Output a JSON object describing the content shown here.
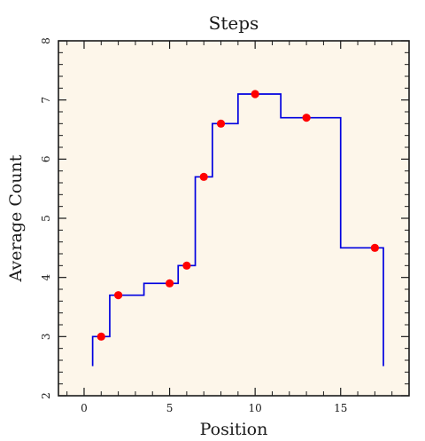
{
  "chart_data": {
    "type": "line",
    "style": "step",
    "title": "Steps",
    "xlabel": "Position",
    "ylabel": "Average Count",
    "xlim": [
      -1.5,
      19
    ],
    "ylim": [
      2,
      8
    ],
    "xticks": [
      0,
      5,
      10,
      15
    ],
    "yticks": [
      2,
      3,
      4,
      5,
      6,
      7,
      8
    ],
    "grid": false,
    "series": [
      {
        "step_x": [
          0.5,
          0.5,
          1.5,
          1.5,
          3.5,
          3.5,
          5.5,
          5.5,
          6.5,
          6.5,
          7.5,
          7.5,
          9.0,
          9.0,
          11.5,
          11.5,
          15.0,
          15.0,
          17.5,
          17.5
        ],
        "step_y": [
          2.5,
          3.0,
          3.0,
          3.7,
          3.7,
          3.9,
          3.9,
          4.2,
          4.2,
          5.7,
          5.7,
          6.6,
          6.6,
          7.1,
          7.1,
          6.7,
          6.7,
          4.5,
          4.5,
          2.5
        ],
        "color": "#0000e0"
      },
      {
        "x": [
          1,
          2,
          5,
          6,
          7,
          8,
          10,
          13,
          17
        ],
        "y": [
          3.0,
          3.7,
          3.9,
          4.2,
          5.7,
          6.6,
          7.1,
          6.7,
          4.5
        ],
        "color": "#ff0000"
      }
    ],
    "colors": {
      "plot_background": "#fdf6ea",
      "axes": "#1a1a1a"
    }
  }
}
